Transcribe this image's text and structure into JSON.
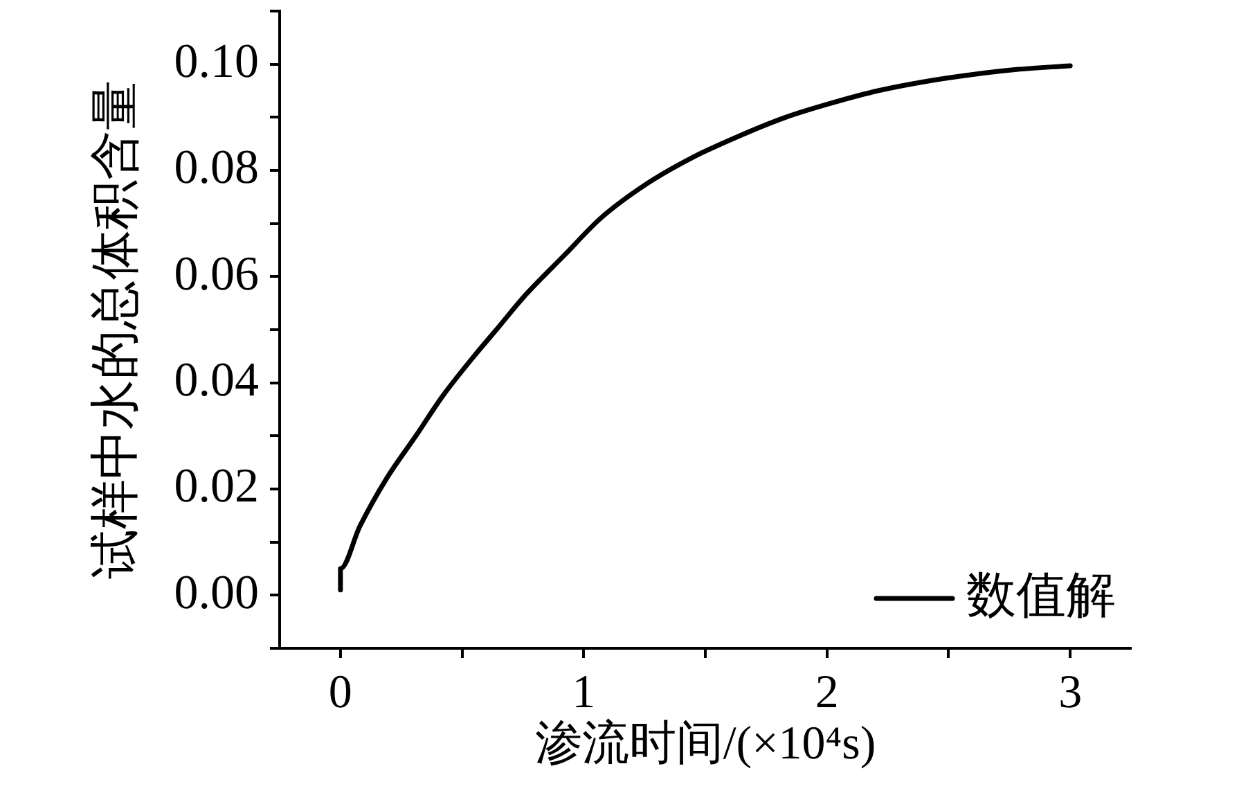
{
  "chart_data": {
    "type": "line",
    "xlabel": "渗流时间/(×10⁴s)",
    "ylabel": "试样中水的总体积含量",
    "series": [
      {
        "name": "数值解",
        "color": "#000000",
        "x": [
          0,
          0,
          0.08,
          0.19,
          0.31,
          0.42,
          0.54,
          0.65,
          0.76,
          0.92,
          1.07,
          1.26,
          1.45,
          1.64,
          1.83,
          2.02,
          2.21,
          2.4,
          2.59,
          2.78,
          3.0
        ],
        "values": [
          0.001,
          0.005,
          0.013,
          0.022,
          0.03,
          0.0375,
          0.0445,
          0.0505,
          0.0565,
          0.064,
          0.071,
          0.0775,
          0.0825,
          0.0865,
          0.09,
          0.0927,
          0.095,
          0.0967,
          0.098,
          0.099,
          0.0997
        ]
      }
    ],
    "xlim": [
      -0.25,
      3.25
    ],
    "xticks": [
      0,
      {
        "value": 0.5,
        "label": null
      },
      1,
      {
        "value": 1.5,
        "label": null
      },
      2,
      {
        "value": 2.5,
        "label": null
      },
      3
    ],
    "ylim": [
      -0.01,
      0.11
    ],
    "yticks": [
      {
        "value": -0.01,
        "label": null
      },
      {
        "value": 0,
        "label": "0.00"
      },
      {
        "value": 0.01,
        "label": null
      },
      {
        "value": 0.02,
        "label": "0.02"
      },
      {
        "value": 0.03,
        "label": null
      },
      {
        "value": 0.04,
        "label": "0.04"
      },
      {
        "value": 0.05,
        "label": null
      },
      {
        "value": 0.06,
        "label": "0.06"
      },
      {
        "value": 0.07,
        "label": null
      },
      {
        "value": 0.08,
        "label": "0.08"
      },
      {
        "value": 0.09,
        "label": null
      },
      {
        "value": 0.1,
        "label": "0.10"
      },
      {
        "value": 0.11,
        "label": null
      }
    ],
    "legend": "bottom right",
    "marker": "none",
    "line_style": "solid"
  }
}
